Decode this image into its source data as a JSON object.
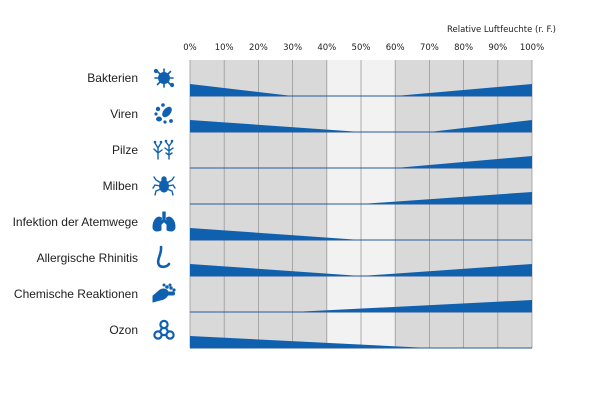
{
  "chart_data": {
    "type": "area",
    "title": "Relative Luftfeuchte (r. F.)",
    "x_ticks": [
      "0%",
      "10%",
      "20%",
      "30%",
      "40%",
      "50%",
      "60%",
      "70%",
      "80%",
      "90%",
      "100%"
    ],
    "xlim": [
      0,
      100
    ],
    "optimal_range": [
      40,
      60
    ],
    "grid": true,
    "colors": {
      "wedge": "#1060b0",
      "background": "#d9d9d9",
      "optimal_background": "#f2f2f2",
      "grid": "#9a9a9a",
      "row_separator": "#2a5a9a",
      "icon": "#1060b0"
    },
    "rows": [
      {
        "label": "Bakterien",
        "icon": "bacteria-icon",
        "low_zero_at": 30,
        "high_start_at": 60
      },
      {
        "label": "Viren",
        "icon": "virus-icon",
        "low_zero_at": 50,
        "high_start_at": 70
      },
      {
        "label": "Pilze",
        "icon": "fungi-icon",
        "low_zero_at": null,
        "high_start_at": 60
      },
      {
        "label": "Milben",
        "icon": "mites-icon",
        "low_zero_at": null,
        "high_start_at": 50
      },
      {
        "label": "Infektion der Atemwege",
        "icon": "lungs-icon",
        "low_zero_at": 50,
        "high_start_at": null
      },
      {
        "label": "Allergische Rhinitis",
        "icon": "nose-icon",
        "low_zero_at": 50,
        "high_start_at": 50
      },
      {
        "label": "Chemische Reaktionen",
        "icon": "chemical-reaction-icon",
        "low_zero_at": null,
        "high_start_at": 30
      },
      {
        "label": "Ozon",
        "icon": "ozone-icon",
        "low_zero_at": 70,
        "high_start_at": null
      }
    ]
  }
}
